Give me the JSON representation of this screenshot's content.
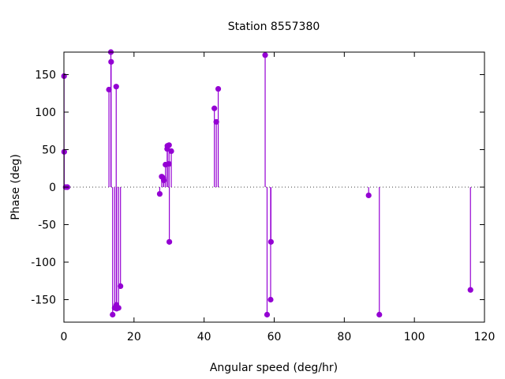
{
  "chart_data": {
    "type": "scatter",
    "title": "Station 8557380",
    "xlabel": "Angular speed (deg/hr)",
    "ylabel": "Phase (deg)",
    "xlim": [
      0,
      120
    ],
    "ylim": [
      -180,
      180
    ],
    "xticks": [
      0,
      20,
      40,
      60,
      80,
      100,
      120
    ],
    "yticks": [
      -150,
      -100,
      -50,
      0,
      50,
      100,
      150
    ],
    "grid": false,
    "zero_line": true,
    "style": "impulses-with-points",
    "color": "#9400d3",
    "series": [
      {
        "points": [
          {
            "x": 0.04,
            "y": 148
          },
          {
            "x": 0.08,
            "y": 47
          },
          {
            "x": 0.5,
            "y": 0
          },
          {
            "x": 1.0,
            "y": 0
          },
          {
            "x": 12.85,
            "y": 130
          },
          {
            "x": 13.4,
            "y": 180
          },
          {
            "x": 13.47,
            "y": 167
          },
          {
            "x": 13.9,
            "y": -170
          },
          {
            "x": 14.49,
            "y": -161
          },
          {
            "x": 14.92,
            "y": 134
          },
          {
            "x": 14.96,
            "y": -157
          },
          {
            "x": 15.04,
            "y": -162
          },
          {
            "x": 15.59,
            "y": -161
          },
          {
            "x": 16.14,
            "y": -132
          },
          {
            "x": 27.34,
            "y": -9
          },
          {
            "x": 27.9,
            "y": 14
          },
          {
            "x": 28.4,
            "y": 12
          },
          {
            "x": 28.51,
            "y": 9
          },
          {
            "x": 28.98,
            "y": 30
          },
          {
            "x": 29.46,
            "y": 51
          },
          {
            "x": 29.53,
            "y": 55
          },
          {
            "x": 29.96,
            "y": 31
          },
          {
            "x": 30.0,
            "y": 56
          },
          {
            "x": 30.08,
            "y": -73
          },
          {
            "x": 30.63,
            "y": 48
          },
          {
            "x": 42.93,
            "y": 105
          },
          {
            "x": 43.48,
            "y": 87
          },
          {
            "x": 44.03,
            "y": 131
          },
          {
            "x": 57.42,
            "y": 176
          },
          {
            "x": 57.97,
            "y": -170
          },
          {
            "x": 58.98,
            "y": -150
          },
          {
            "x": 59.07,
            "y": -73
          },
          {
            "x": 86.95,
            "y": -11
          },
          {
            "x": 90.0,
            "y": -170
          },
          {
            "x": 116.0,
            "y": -137
          }
        ]
      }
    ]
  }
}
